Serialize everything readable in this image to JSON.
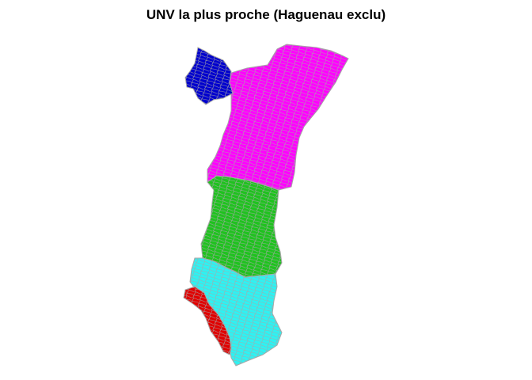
{
  "title": "UNV la plus proche (Haguenau exclu)",
  "map": {
    "border_color": "#a8a8a8",
    "regions": [
      {
        "key": "blue",
        "color": "#0000cd"
      },
      {
        "key": "magenta",
        "color": "#ff00ff"
      },
      {
        "key": "green",
        "color": "#1fc21f"
      },
      {
        "key": "cyan",
        "color": "#2ef2f2"
      },
      {
        "key": "red",
        "color": "#e00000"
      }
    ]
  }
}
